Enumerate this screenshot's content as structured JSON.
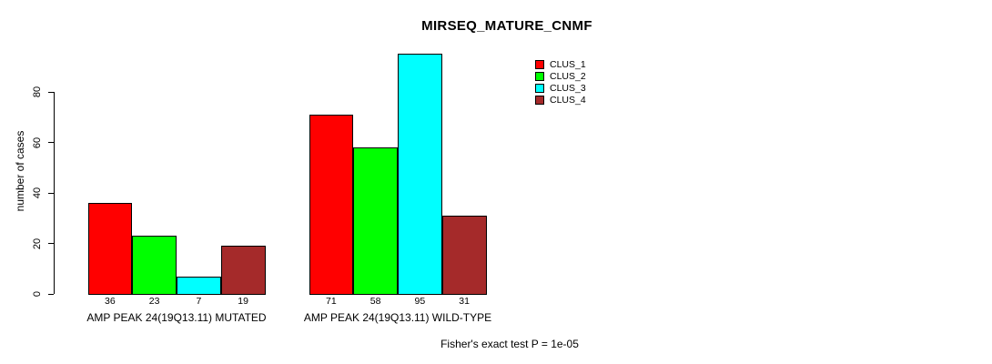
{
  "title": "MIRSEQ_MATURE_CNMF",
  "footer": "Fisher's exact test P = 1e-05",
  "colors": {
    "clus_1": "#FF0000",
    "clus_2": "#00FF00",
    "clus_3": "#00FFFF",
    "clus_4": "#A52A2A",
    "axis": "#000000",
    "background": "#FFFFFF"
  },
  "chart_data": {
    "type": "bar",
    "title": "MIRSEQ_MATURE_CNMF",
    "xlabel": "",
    "ylabel": "number of cases",
    "categories": [
      "AMP PEAK 24(19Q13.11) MUTATED",
      "AMP PEAK 24(19Q13.11) WILD-TYPE"
    ],
    "series": [
      {
        "name": "CLUS_1",
        "color": "#FF0000",
        "values": [
          36,
          71
        ]
      },
      {
        "name": "CLUS_2",
        "color": "#00FF00",
        "values": [
          23,
          58
        ]
      },
      {
        "name": "CLUS_3",
        "color": "#00FFFF",
        "values": [
          7,
          95
        ]
      },
      {
        "name": "CLUS_4",
        "color": "#A52A2A",
        "values": [
          19,
          31
        ]
      }
    ],
    "bar_value_labels": [
      [
        "36",
        "23",
        "7",
        "19"
      ],
      [
        "71",
        "58",
        "95",
        "31"
      ]
    ],
    "yticks": [
      0,
      20,
      40,
      60,
      80
    ],
    "ylim": [
      0,
      95
    ],
    "grid": false,
    "legend_position": "top-right",
    "annotation": "Fisher's exact test P = 1e-05"
  }
}
